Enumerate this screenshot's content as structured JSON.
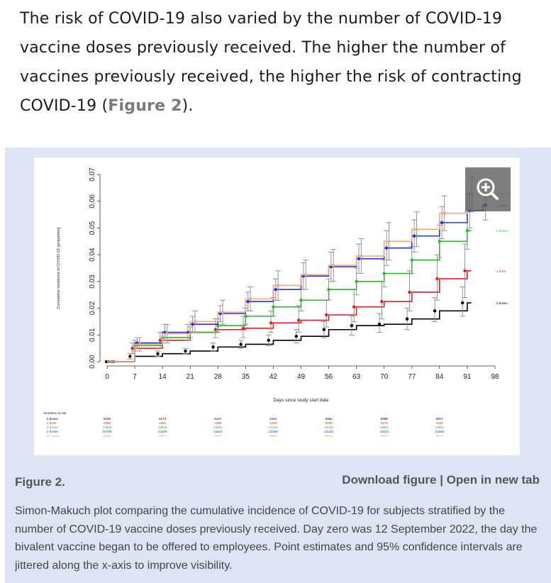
{
  "intro": {
    "text_before": "The risk of COVID-19 also varied by the number of COVID-19 vaccine doses previously received. The higher the number of vaccines previously received, the higher the risk of contracting COVID-19 (",
    "figure_link": "Figure 2",
    "text_after": ")."
  },
  "figure": {
    "label": "Figure 2.",
    "download": "Download figure",
    "separator": "|",
    "open_new_tab": "Open in new tab",
    "caption": "Simon-Makuch plot comparing the cumulative incidence of COVID-19 for subjects stratified by the number of COVID-19 vaccine doses previously received. Day zero was 12 September 2022, the day the bivalent vaccine began to be offered to employees. Point estimates and 95% confidence intervals are jittered along the x-axis to improve visibility.",
    "zoom_icon": "zoom-in-icon"
  },
  "chart_data": {
    "type": "line",
    "xlabel": "Days since study start date",
    "ylabel": "Cumulative incidence of COVID-19 (proportion)",
    "xlim": [
      0,
      98
    ],
    "ylim": [
      0,
      0.07
    ],
    "x_ticks": [
      0,
      7,
      14,
      21,
      28,
      35,
      42,
      49,
      56,
      63,
      70,
      77,
      84,
      91,
      98
    ],
    "y_ticks": [
      "0.00",
      "0.01",
      "0.02",
      "0.03",
      "0.04",
      "0.05",
      "0.06",
      "0.07"
    ],
    "grid": false,
    "x": [
      0,
      7,
      14,
      21,
      28,
      35,
      42,
      49,
      56,
      63,
      70,
      77,
      84,
      91,
      95
    ],
    "series": [
      {
        "name": "0 doses",
        "color": "#000000",
        "values": [
          0.0,
          0.002,
          0.003,
          0.004,
          0.0055,
          0.0065,
          0.008,
          0.0095,
          0.012,
          0.0135,
          0.014,
          0.016,
          0.019,
          0.022,
          null
        ],
        "ci": [
          [
            0,
            0
          ],
          [
            0.001,
            0.003
          ],
          [
            0.002,
            0.004
          ],
          [
            0.003,
            0.005
          ],
          [
            0.004,
            0.007
          ],
          [
            0.005,
            0.008
          ],
          [
            0.006,
            0.01
          ],
          [
            0.007,
            0.012
          ],
          [
            0.009,
            0.015
          ],
          [
            0.01,
            0.017
          ],
          [
            0.011,
            0.018
          ],
          [
            0.012,
            0.02
          ],
          [
            0.015,
            0.024
          ],
          [
            0.017,
            0.028
          ],
          null
        ]
      },
      {
        "name": "1 dose",
        "color": "#e41a1c",
        "values": [
          0.0,
          0.005,
          0.008,
          0.011,
          0.012,
          0.0125,
          0.0145,
          0.0155,
          0.0175,
          0.0205,
          0.0225,
          0.026,
          0.031,
          0.034,
          null
        ],
        "ci": [
          [
            0,
            0
          ],
          [
            0.003,
            0.007
          ],
          [
            0.005,
            0.011
          ],
          [
            0.008,
            0.014
          ],
          [
            0.009,
            0.016
          ],
          [
            0.009,
            0.017
          ],
          [
            0.011,
            0.019
          ],
          [
            0.011,
            0.021
          ],
          [
            0.013,
            0.023
          ],
          [
            0.015,
            0.027
          ],
          [
            0.016,
            0.03
          ],
          [
            0.019,
            0.034
          ],
          [
            0.023,
            0.04
          ],
          [
            0.024,
            0.044
          ],
          null
        ]
      },
      {
        "name": "2 doses",
        "color": "#1fbf1f",
        "values": [
          0.0,
          0.006,
          0.009,
          0.011,
          0.0135,
          0.017,
          0.0205,
          0.023,
          0.027,
          0.03,
          0.033,
          0.038,
          0.045,
          0.049,
          null
        ],
        "ci": [
          [
            0,
            0
          ],
          [
            0.004,
            0.008
          ],
          [
            0.007,
            0.011
          ],
          [
            0.009,
            0.013
          ],
          [
            0.011,
            0.016
          ],
          [
            0.014,
            0.02
          ],
          [
            0.017,
            0.024
          ],
          [
            0.019,
            0.027
          ],
          [
            0.023,
            0.031
          ],
          [
            0.025,
            0.035
          ],
          [
            0.028,
            0.038
          ],
          [
            0.033,
            0.043
          ],
          [
            0.039,
            0.051
          ],
          [
            0.042,
            0.056
          ],
          null
        ]
      },
      {
        "name": "3 doses",
        "color": "#2233dd",
        "values": [
          0.0,
          0.007,
          0.011,
          0.014,
          0.018,
          0.0225,
          0.027,
          0.032,
          0.0355,
          0.0385,
          0.0425,
          0.047,
          0.052,
          0.0565,
          0.0585
        ],
        "ci": [
          [
            0,
            0
          ],
          [
            0.005,
            0.009
          ],
          [
            0.008,
            0.014
          ],
          [
            0.011,
            0.017
          ],
          [
            0.015,
            0.021
          ],
          [
            0.019,
            0.026
          ],
          [
            0.023,
            0.031
          ],
          [
            0.027,
            0.037
          ],
          [
            0.03,
            0.041
          ],
          [
            0.033,
            0.044
          ],
          [
            0.036,
            0.049
          ],
          [
            0.041,
            0.053
          ],
          [
            0.046,
            0.058
          ],
          [
            0.05,
            0.063
          ],
          [
            0.053,
            0.065
          ]
        ]
      },
      {
        "name": "≥4 doses",
        "color": "#f4a582",
        "values": [
          0.0,
          0.0065,
          0.0105,
          0.015,
          0.0185,
          0.0235,
          0.0285,
          0.0325,
          0.036,
          0.0395,
          0.045,
          0.0495,
          0.0555,
          0.0625,
          null
        ],
        "ci": [
          [
            0,
            0
          ],
          [
            0.004,
            0.009
          ],
          [
            0.007,
            0.014
          ],
          [
            0.011,
            0.019
          ],
          [
            0.014,
            0.023
          ],
          [
            0.019,
            0.028
          ],
          [
            0.023,
            0.034
          ],
          [
            0.027,
            0.038
          ],
          [
            0.03,
            0.042
          ],
          [
            0.033,
            0.046
          ],
          [
            0.038,
            0.052
          ],
          [
            0.043,
            0.056
          ],
          [
            0.049,
            0.062
          ],
          [
            0.056,
            0.069
          ],
          null
        ]
      }
    ],
    "end_labels": [
      "≥4 doses",
      "3 doses",
      "2 doses",
      "1 dose",
      "0 doses"
    ],
    "risk_table": {
      "title": "Numbers at risk",
      "rows": [
        "0 doses",
        "1 dose",
        "2 doses",
        "3 doses",
        "≥4 doses"
      ],
      "at_days": [
        0,
        14,
        28,
        42,
        56,
        70,
        84
      ],
      "values": [
        [
          "6188",
          "6173",
          "6147",
          "6151",
          "6062",
          "5998",
          "5917"
        ],
        [
          "2359",
          "2362",
          "2398",
          "2420",
          "2408",
          "2376",
          "2342"
        ],
        [
          "13664",
          "13646",
          "13651",
          "14142",
          "14040",
          "13981",
          "13831"
        ],
        [
          "20798",
          "21200",
          "21832",
          "22309",
          "22230",
          "22022",
          "21663"
        ],
        [
          "3538",
          "3574",
          "3647",
          "3696",
          "3682",
          "3645",
          "3572"
        ]
      ]
    }
  }
}
